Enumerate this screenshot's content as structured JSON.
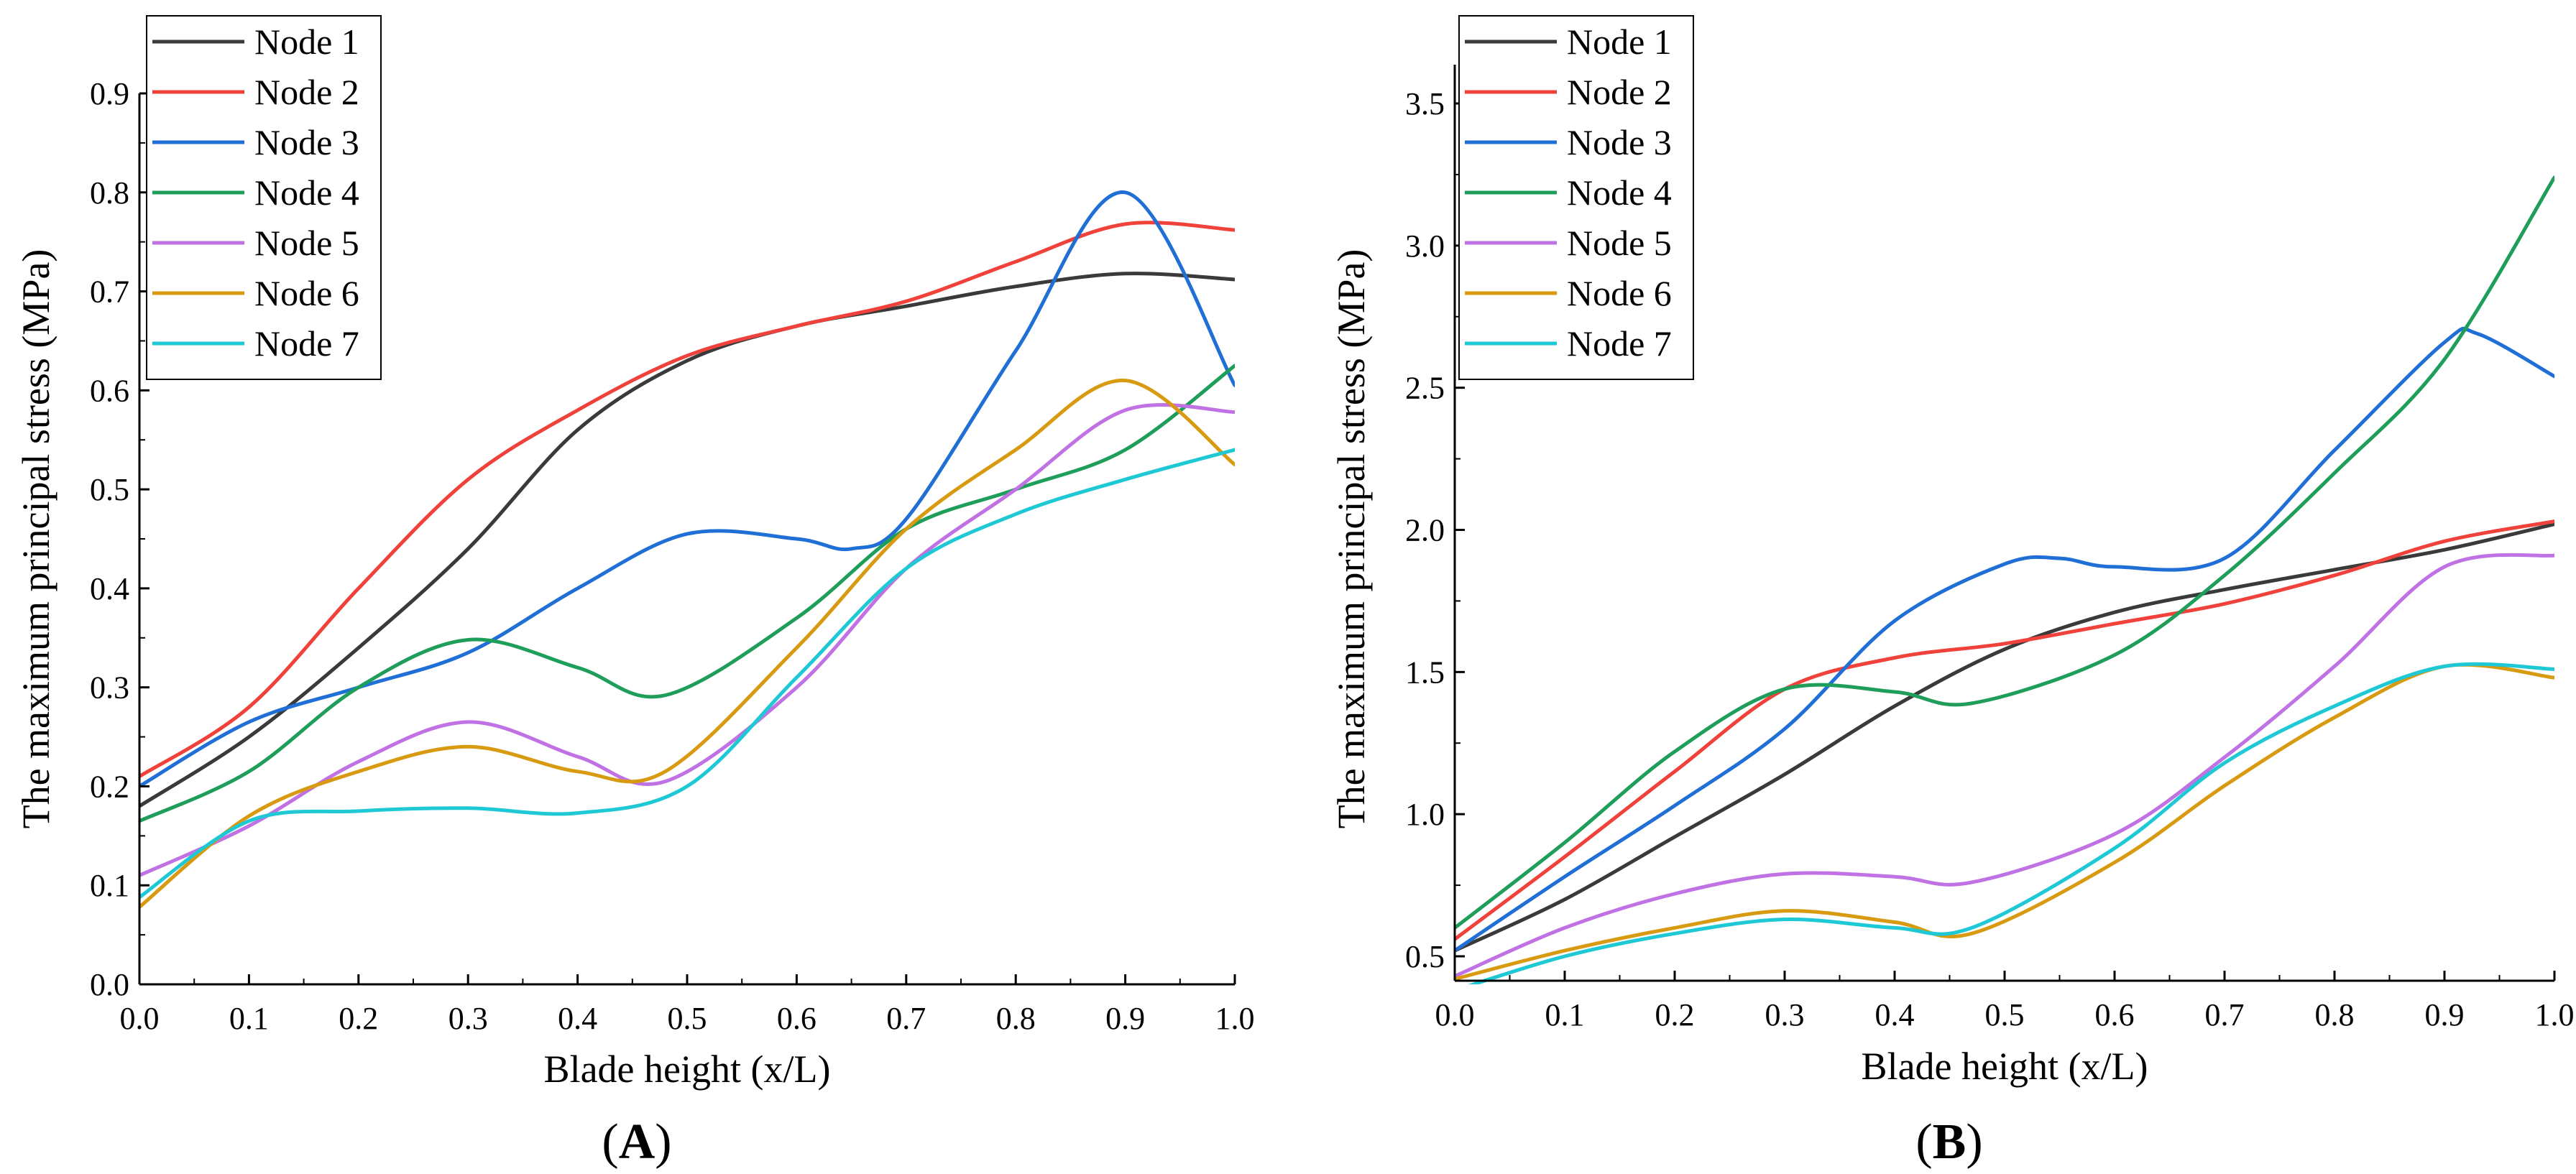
{
  "chart_data": [
    {
      "id": "A",
      "type": "line",
      "panel_label": "A",
      "xlabel": "Blade height (x/L)",
      "ylabel": "The maximum principal stress (MPa)",
      "xlim": [
        0.0,
        1.0
      ],
      "ylim": [
        0.0,
        0.9
      ],
      "x_ticks": [
        0.0,
        0.1,
        0.2,
        0.3,
        0.4,
        0.5,
        0.6,
        0.7,
        0.8,
        0.9,
        1.0
      ],
      "x_tick_labels": [
        "0.0",
        "0.1",
        "0.2",
        "0.3",
        "0.4",
        "0.5",
        "0.6",
        "0.7",
        "0.8",
        "0.9",
        "1.0"
      ],
      "y_ticks": [
        0.0,
        0.1,
        0.2,
        0.3,
        0.4,
        0.5,
        0.6,
        0.7,
        0.8,
        0.9
      ],
      "y_tick_labels": [
        "0.0",
        "0.1",
        "0.2",
        "0.3",
        "0.4",
        "0.5",
        "0.6",
        "0.7",
        "0.8",
        "0.9"
      ],
      "legend": "top-left",
      "series": [
        {
          "name": "Node 1",
          "color": "#3a3a3a",
          "x": [
            0.0,
            0.1,
            0.2,
            0.3,
            0.4,
            0.5,
            0.6,
            0.7,
            0.8,
            0.9,
            1.0
          ],
          "y": [
            0.18,
            0.25,
            0.34,
            0.44,
            0.56,
            0.63,
            0.665,
            0.685,
            0.705,
            0.718,
            0.712
          ]
        },
        {
          "name": "Node 2",
          "color": "#f0413a",
          "x": [
            0.0,
            0.1,
            0.2,
            0.3,
            0.4,
            0.5,
            0.6,
            0.7,
            0.8,
            0.9,
            1.0
          ],
          "y": [
            0.21,
            0.28,
            0.4,
            0.51,
            0.58,
            0.635,
            0.665,
            0.69,
            0.73,
            0.768,
            0.762
          ]
        },
        {
          "name": "Node 3",
          "color": "#1f6fd6",
          "x": [
            0.0,
            0.1,
            0.2,
            0.3,
            0.4,
            0.5,
            0.6,
            0.65,
            0.7,
            0.8,
            0.9,
            1.0
          ],
          "y": [
            0.2,
            0.265,
            0.3,
            0.335,
            0.4,
            0.455,
            0.45,
            0.44,
            0.47,
            0.64,
            0.8,
            0.605
          ]
        },
        {
          "name": "Node 4",
          "color": "#1e9e5a",
          "x": [
            0.0,
            0.1,
            0.2,
            0.3,
            0.4,
            0.48,
            0.6,
            0.7,
            0.8,
            0.9,
            1.0
          ],
          "y": [
            0.165,
            0.215,
            0.3,
            0.348,
            0.32,
            0.292,
            0.37,
            0.46,
            0.5,
            0.54,
            0.625
          ]
        },
        {
          "name": "Node 5",
          "color": "#c071e3",
          "x": [
            0.0,
            0.1,
            0.2,
            0.3,
            0.4,
            0.48,
            0.6,
            0.7,
            0.8,
            0.9,
            1.0
          ],
          "y": [
            0.11,
            0.16,
            0.225,
            0.265,
            0.23,
            0.205,
            0.3,
            0.42,
            0.5,
            0.58,
            0.578
          ]
        },
        {
          "name": "Node 6",
          "color": "#d89a11",
          "x": [
            0.0,
            0.1,
            0.2,
            0.3,
            0.4,
            0.48,
            0.6,
            0.7,
            0.8,
            0.9,
            1.0
          ],
          "y": [
            0.078,
            0.17,
            0.215,
            0.24,
            0.215,
            0.215,
            0.34,
            0.46,
            0.54,
            0.61,
            0.525
          ]
        },
        {
          "name": "Node 7",
          "color": "#1ec8d4",
          "x": [
            0.0,
            0.1,
            0.2,
            0.3,
            0.4,
            0.5,
            0.6,
            0.7,
            0.8,
            0.9,
            1.0
          ],
          "y": [
            0.088,
            0.165,
            0.175,
            0.178,
            0.173,
            0.2,
            0.31,
            0.42,
            0.475,
            0.51,
            0.54
          ]
        }
      ]
    },
    {
      "id": "B",
      "type": "line",
      "panel_label": "B",
      "xlabel": "Blade height (x/L)",
      "ylabel": "The maximum principal stress (MPa)",
      "xlim": [
        0.0,
        1.0
      ],
      "ylim": [
        0.25,
        3.7
      ],
      "x_ticks": [
        0.0,
        0.1,
        0.2,
        0.3,
        0.4,
        0.5,
        0.6,
        0.7,
        0.8,
        0.9,
        1.0
      ],
      "x_tick_labels": [
        "0.0",
        "0.1",
        "0.2",
        "0.3",
        "0.4",
        "0.5",
        "0.6",
        "0.7",
        "0.8",
        "0.9",
        "1.0"
      ],
      "y_ticks": [
        0.5,
        1.0,
        1.5,
        2.0,
        2.5,
        3.0,
        3.5
      ],
      "y_tick_labels": [
        "0.5",
        "1.0",
        "1.5",
        "2.0",
        "2.5",
        "3.0",
        "3.5"
      ],
      "legend": "top-left",
      "series": [
        {
          "name": "Node 1",
          "color": "#3a3a3a",
          "x": [
            0.0,
            0.1,
            0.2,
            0.3,
            0.4,
            0.5,
            0.6,
            0.7,
            0.8,
            0.9,
            1.0
          ],
          "y": [
            0.52,
            0.7,
            0.92,
            1.14,
            1.38,
            1.58,
            1.71,
            1.79,
            1.86,
            1.93,
            2.02
          ]
        },
        {
          "name": "Node 2",
          "color": "#f0413a",
          "x": [
            0.0,
            0.1,
            0.2,
            0.3,
            0.4,
            0.5,
            0.6,
            0.7,
            0.8,
            0.9,
            1.0
          ],
          "y": [
            0.56,
            0.85,
            1.15,
            1.44,
            1.55,
            1.6,
            1.67,
            1.74,
            1.84,
            1.96,
            2.03
          ]
        },
        {
          "name": "Node 3",
          "color": "#1f6fd6",
          "x": [
            0.0,
            0.1,
            0.2,
            0.3,
            0.4,
            0.5,
            0.55,
            0.6,
            0.7,
            0.8,
            0.9,
            0.93,
            1.0
          ],
          "y": [
            0.52,
            0.78,
            1.03,
            1.3,
            1.68,
            1.88,
            1.9,
            1.87,
            1.9,
            2.28,
            2.66,
            2.69,
            2.54
          ]
        },
        {
          "name": "Node 4",
          "color": "#1e9e5a",
          "x": [
            0.0,
            0.1,
            0.2,
            0.3,
            0.4,
            0.47,
            0.6,
            0.7,
            0.8,
            0.9,
            1.0
          ],
          "y": [
            0.6,
            0.9,
            1.22,
            1.44,
            1.43,
            1.39,
            1.56,
            1.84,
            2.2,
            2.6,
            3.24
          ]
        },
        {
          "name": "Node 5",
          "color": "#c071e3",
          "x": [
            0.0,
            0.1,
            0.2,
            0.3,
            0.4,
            0.47,
            0.6,
            0.7,
            0.8,
            0.9,
            1.0
          ],
          "y": [
            0.43,
            0.6,
            0.72,
            0.79,
            0.78,
            0.76,
            0.93,
            1.2,
            1.52,
            1.87,
            1.91
          ]
        },
        {
          "name": "Node 6",
          "color": "#d89a11",
          "x": [
            0.0,
            0.1,
            0.2,
            0.3,
            0.4,
            0.47,
            0.6,
            0.7,
            0.8,
            0.9,
            1.0
          ],
          "y": [
            0.42,
            0.52,
            0.6,
            0.66,
            0.62,
            0.58,
            0.83,
            1.1,
            1.34,
            1.52,
            1.48
          ]
        },
        {
          "name": "Node 7",
          "color": "#1ec8d4",
          "x": [
            0.0,
            0.1,
            0.2,
            0.3,
            0.4,
            0.47,
            0.6,
            0.7,
            0.8,
            0.9,
            1.0
          ],
          "y": [
            0.38,
            0.5,
            0.58,
            0.63,
            0.6,
            0.6,
            0.88,
            1.18,
            1.38,
            1.52,
            1.51
          ]
        }
      ]
    }
  ]
}
